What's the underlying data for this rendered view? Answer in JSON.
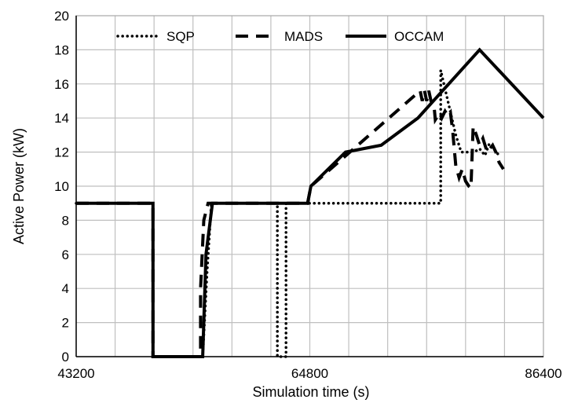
{
  "chart_data": {
    "type": "line",
    "title": "",
    "xlabel": "Simulation time (s)",
    "ylabel": "Active Power (kW)",
    "xlim": [
      43200,
      86400
    ],
    "ylim": [
      0,
      20
    ],
    "x_ticks": [
      "43200",
      "64800",
      "86400"
    ],
    "x_minor_step": 3600,
    "y_ticks": [
      "0",
      "2",
      "4",
      "6",
      "8",
      "10",
      "12",
      "14",
      "16",
      "18",
      "20"
    ],
    "grid": true,
    "legend_position": "top",
    "series": [
      {
        "name": "SQP",
        "style": "dotted",
        "color": "#000000",
        "points": [
          [
            43200,
            9
          ],
          [
            50300,
            9
          ],
          [
            50300,
            0
          ],
          [
            54900,
            0
          ],
          [
            55300,
            5
          ],
          [
            55700,
            9
          ],
          [
            61800,
            9
          ],
          [
            61800,
            0
          ],
          [
            62600,
            0
          ],
          [
            62600,
            9
          ],
          [
            76900,
            9
          ],
          [
            76900,
            16.8
          ],
          [
            78300,
            13
          ],
          [
            78800,
            12
          ],
          [
            79500,
            12
          ],
          [
            80000,
            12
          ],
          [
            80500,
            12.2
          ],
          [
            81000,
            11.8
          ],
          [
            81400,
            12.5
          ],
          [
            81800,
            12.2
          ],
          [
            82300,
            11.8
          ]
        ]
      },
      {
        "name": "MADS",
        "style": "dashed",
        "color": "#000000",
        "points": [
          [
            43200,
            9
          ],
          [
            50300,
            9
          ],
          [
            50300,
            0
          ],
          [
            54700,
            0
          ],
          [
            54700,
            4
          ],
          [
            55000,
            8
          ],
          [
            55400,
            9
          ],
          [
            64600,
            9
          ],
          [
            64900,
            10
          ],
          [
            75000,
            15.6
          ],
          [
            75200,
            15.0
          ],
          [
            75400,
            15.6
          ],
          [
            75600,
            15.0
          ],
          [
            75800,
            15.6
          ],
          [
            76000,
            15.0
          ],
          [
            76300,
            14.6
          ],
          [
            76400,
            13.9
          ],
          [
            76800,
            14.3
          ],
          [
            77000,
            14.0
          ],
          [
            77300,
            14.4
          ],
          [
            77600,
            14.1
          ],
          [
            77800,
            14.3
          ],
          [
            78000,
            13.3
          ],
          [
            78300,
            11.2
          ],
          [
            78600,
            10.5
          ],
          [
            78900,
            11.0
          ],
          [
            79200,
            10.3
          ],
          [
            79500,
            10.0
          ],
          [
            79700,
            9.9
          ],
          [
            79900,
            13.5
          ],
          [
            80200,
            13.0
          ],
          [
            80500,
            12.4
          ],
          [
            80800,
            12.8
          ],
          [
            81200,
            12.0
          ],
          [
            81700,
            12.4
          ],
          [
            82000,
            12.0
          ],
          [
            82300,
            11.4
          ],
          [
            82700,
            11.0
          ]
        ]
      },
      {
        "name": "OCCAM",
        "style": "solid",
        "color": "#000000",
        "points": [
          [
            43200,
            9
          ],
          [
            50300,
            9
          ],
          [
            50300,
            0
          ],
          [
            54900,
            0
          ],
          [
            55200,
            6
          ],
          [
            55800,
            9
          ],
          [
            64600,
            9
          ],
          [
            64900,
            10
          ],
          [
            68100,
            12
          ],
          [
            71400,
            12.4
          ],
          [
            74800,
            14
          ],
          [
            80500,
            18
          ],
          [
            86400,
            14
          ]
        ]
      }
    ]
  }
}
